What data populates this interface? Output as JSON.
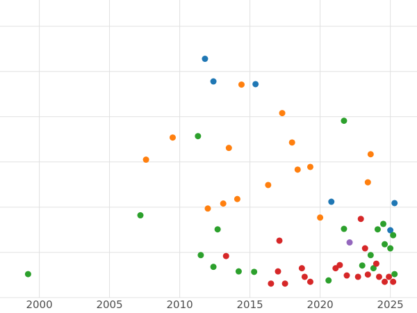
{
  "chart_data": {
    "type": "scatter",
    "title": "",
    "xlabel": "",
    "ylabel": "",
    "grid": true,
    "legend": "none",
    "background_color": "#ffffff",
    "grid_color": "#e0e0e0",
    "tick_label_color": "#4d4d4d",
    "tick_label_font_size": 15,
    "marker_radius_px": 4.5,
    "x_ticks": [
      2000,
      2005,
      2010,
      2015,
      2020,
      2025
    ],
    "x_tick_labels": [
      "2000",
      "2005",
      "2010",
      "2015",
      "2020",
      "2025"
    ],
    "y_tick_labels": [],
    "y_gridline_values": [
      0,
      1,
      2,
      3,
      4,
      5,
      6
    ],
    "xlim": [
      1997.2,
      2026.9
    ],
    "ylim": [
      -0.34,
      6.58
    ],
    "series": [
      {
        "name": "blue-series",
        "color": "#1f77b4",
        "points": [
          [
            2011.8,
            5.28
          ],
          [
            2012.4,
            4.78
          ],
          [
            2015.4,
            4.72
          ],
          [
            2020.8,
            2.12
          ],
          [
            2025.3,
            2.09
          ],
          [
            2025.0,
            1.49
          ]
        ]
      },
      {
        "name": "orange-series",
        "color": "#ff7f0e",
        "points": [
          [
            2007.6,
            3.05
          ],
          [
            2009.5,
            3.54
          ],
          [
            2012.0,
            1.97
          ],
          [
            2013.1,
            2.08
          ],
          [
            2013.5,
            3.31
          ],
          [
            2014.1,
            2.18
          ],
          [
            2014.4,
            4.71
          ],
          [
            2016.3,
            2.49
          ],
          [
            2017.3,
            4.08
          ],
          [
            2018.0,
            3.43
          ],
          [
            2018.4,
            2.83
          ],
          [
            2019.3,
            2.89
          ],
          [
            2020.0,
            1.77
          ],
          [
            2023.4,
            2.55
          ],
          [
            2023.6,
            3.17
          ]
        ]
      },
      {
        "name": "green-series",
        "color": "#2ca02c",
        "points": [
          [
            1999.2,
            0.52
          ],
          [
            2007.2,
            1.82
          ],
          [
            2011.3,
            3.57
          ],
          [
            2011.5,
            0.94
          ],
          [
            2012.4,
            0.68
          ],
          [
            2012.7,
            1.51
          ],
          [
            2014.2,
            0.58
          ],
          [
            2015.3,
            0.57
          ],
          [
            2020.6,
            0.38
          ],
          [
            2021.7,
            3.91
          ],
          [
            2021.7,
            1.52
          ],
          [
            2023.0,
            0.71
          ],
          [
            2023.6,
            0.94
          ],
          [
            2023.8,
            0.65
          ],
          [
            2024.1,
            1.51
          ],
          [
            2024.5,
            1.63
          ],
          [
            2024.6,
            1.18
          ],
          [
            2025.0,
            1.09
          ],
          [
            2025.2,
            1.38
          ],
          [
            2025.3,
            0.52
          ]
        ]
      },
      {
        "name": "red-series",
        "color": "#d62728",
        "points": [
          [
            2013.3,
            0.92
          ],
          [
            2016.5,
            0.31
          ],
          [
            2017.0,
            0.58
          ],
          [
            2017.1,
            1.26
          ],
          [
            2017.5,
            0.31
          ],
          [
            2018.7,
            0.65
          ],
          [
            2018.9,
            0.46
          ],
          [
            2019.3,
            0.35
          ],
          [
            2021.1,
            0.65
          ],
          [
            2021.4,
            0.72
          ],
          [
            2021.9,
            0.49
          ],
          [
            2022.7,
            0.46
          ],
          [
            2022.9,
            1.74
          ],
          [
            2023.2,
            1.09
          ],
          [
            2023.4,
            0.51
          ],
          [
            2024.0,
            0.75
          ],
          [
            2024.2,
            0.46
          ],
          [
            2024.6,
            0.35
          ],
          [
            2024.9,
            0.46
          ],
          [
            2025.2,
            0.35
          ]
        ]
      },
      {
        "name": "purple-series",
        "color": "#9467bd",
        "points": [
          [
            2022.1,
            1.22
          ]
        ]
      }
    ]
  }
}
